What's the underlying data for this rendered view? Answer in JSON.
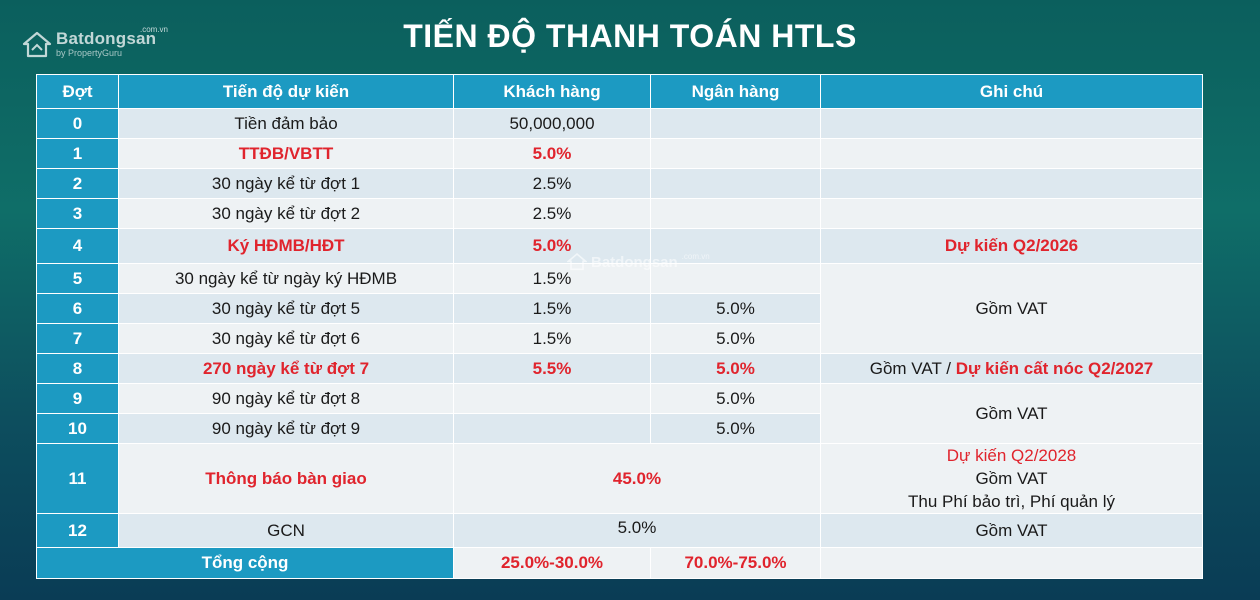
{
  "logo": {
    "name": "Batdongsan",
    "sub": "by PropertyGuru",
    "domain": ".com.vn"
  },
  "watermark": {
    "name": "Batdongsan",
    "domain": ".com.vn"
  },
  "title": "TIẾN ĐỘ THANH TOÁN HTLS",
  "headers": [
    "Đợt",
    "Tiến độ dự kiến",
    "Khách hàng",
    "Ngân hàng",
    "Ghi chú"
  ],
  "rows": [
    {
      "dot": "0",
      "progress": "Tiền đảm bảo",
      "customer": "50,000,000",
      "bank": "",
      "note": ""
    },
    {
      "dot": "1",
      "progress": "TTĐB/VBTT",
      "customer": "5.0%",
      "bank": "",
      "note": ""
    },
    {
      "dot": "2",
      "progress": "30 ngày kể từ đợt 1",
      "customer": "2.5%",
      "bank": "",
      "note": ""
    },
    {
      "dot": "3",
      "progress": "30 ngày kể từ đợt 2",
      "customer": "2.5%",
      "bank": "",
      "note": ""
    },
    {
      "dot": "4",
      "progress": "Ký HĐMB/HĐT",
      "customer": "5.0%",
      "bank": "",
      "note": "Dự kiến Q2/2026"
    },
    {
      "dot": "5",
      "progress": "30 ngày kể từ ngày ký HĐMB",
      "customer": "1.5%",
      "bank": "",
      "note": "Gồm VAT"
    },
    {
      "dot": "6",
      "progress": "30 ngày kể từ đợt 5",
      "customer": "1.5%",
      "bank": "5.0%"
    },
    {
      "dot": "7",
      "progress": "30 ngày kể từ đợt 6",
      "customer": "1.5%",
      "bank": "5.0%"
    },
    {
      "dot": "8",
      "progress": "270 ngày kể từ đợt 7",
      "customer": "5.5%",
      "bank": "5.0%",
      "note_a": "Gồm VAT / ",
      "note_b": "Dự kiến cất nóc Q2/2027"
    },
    {
      "dot": "9",
      "progress": "90 ngày kể từ đợt 8",
      "customer": "",
      "bank": "5.0%",
      "note": "Gồm VAT"
    },
    {
      "dot": "10",
      "progress": "90 ngày kể từ đợt 9",
      "customer": "",
      "bank": "5.0%"
    },
    {
      "dot": "11",
      "progress": "Thông báo bàn giao",
      "combined": "45.0%",
      "note_1": "Dự kiến Q2/2028",
      "note_2": "Gồm VAT",
      "note_3": "Thu Phí bảo trì, Phí quản lý"
    },
    {
      "dot": "12",
      "progress": "GCN",
      "combined": "5.0%",
      "note": "Gồm VAT"
    }
  ],
  "total": {
    "label": "Tổng cộng",
    "customer": "25.0%-30.0%",
    "bank": "70.0%-75.0%",
    "note": ""
  },
  "colors": {
    "header": "#1c9ac2",
    "highlight": "#e0242d",
    "row_light": "#dde8ef",
    "row_white": "#eef2f4"
  }
}
